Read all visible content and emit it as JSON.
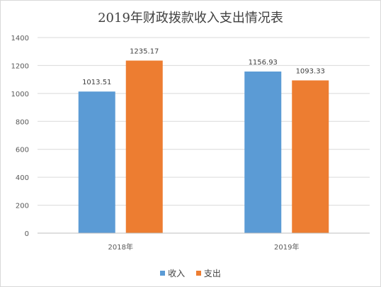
{
  "chart_data": {
    "type": "bar",
    "title": "2019年财政拨款收入支出情况表",
    "categories": [
      "2018年",
      "2019年"
    ],
    "series": [
      {
        "name": "收入",
        "color": "#5b9bd5",
        "values": [
          1013.51,
          1156.93
        ],
        "labels": [
          "1013.51",
          "1156.93"
        ]
      },
      {
        "name": "支出",
        "color": "#ed7d31",
        "values": [
          1235.17,
          1093.33
        ],
        "labels": [
          "1235.17",
          "1093.33"
        ]
      }
    ],
    "yticks": [
      "0",
      "200",
      "400",
      "600",
      "800",
      "1000",
      "1200",
      "1400"
    ],
    "ylim": [
      0,
      1400
    ],
    "grid": true,
    "legend_position": "bottom"
  }
}
